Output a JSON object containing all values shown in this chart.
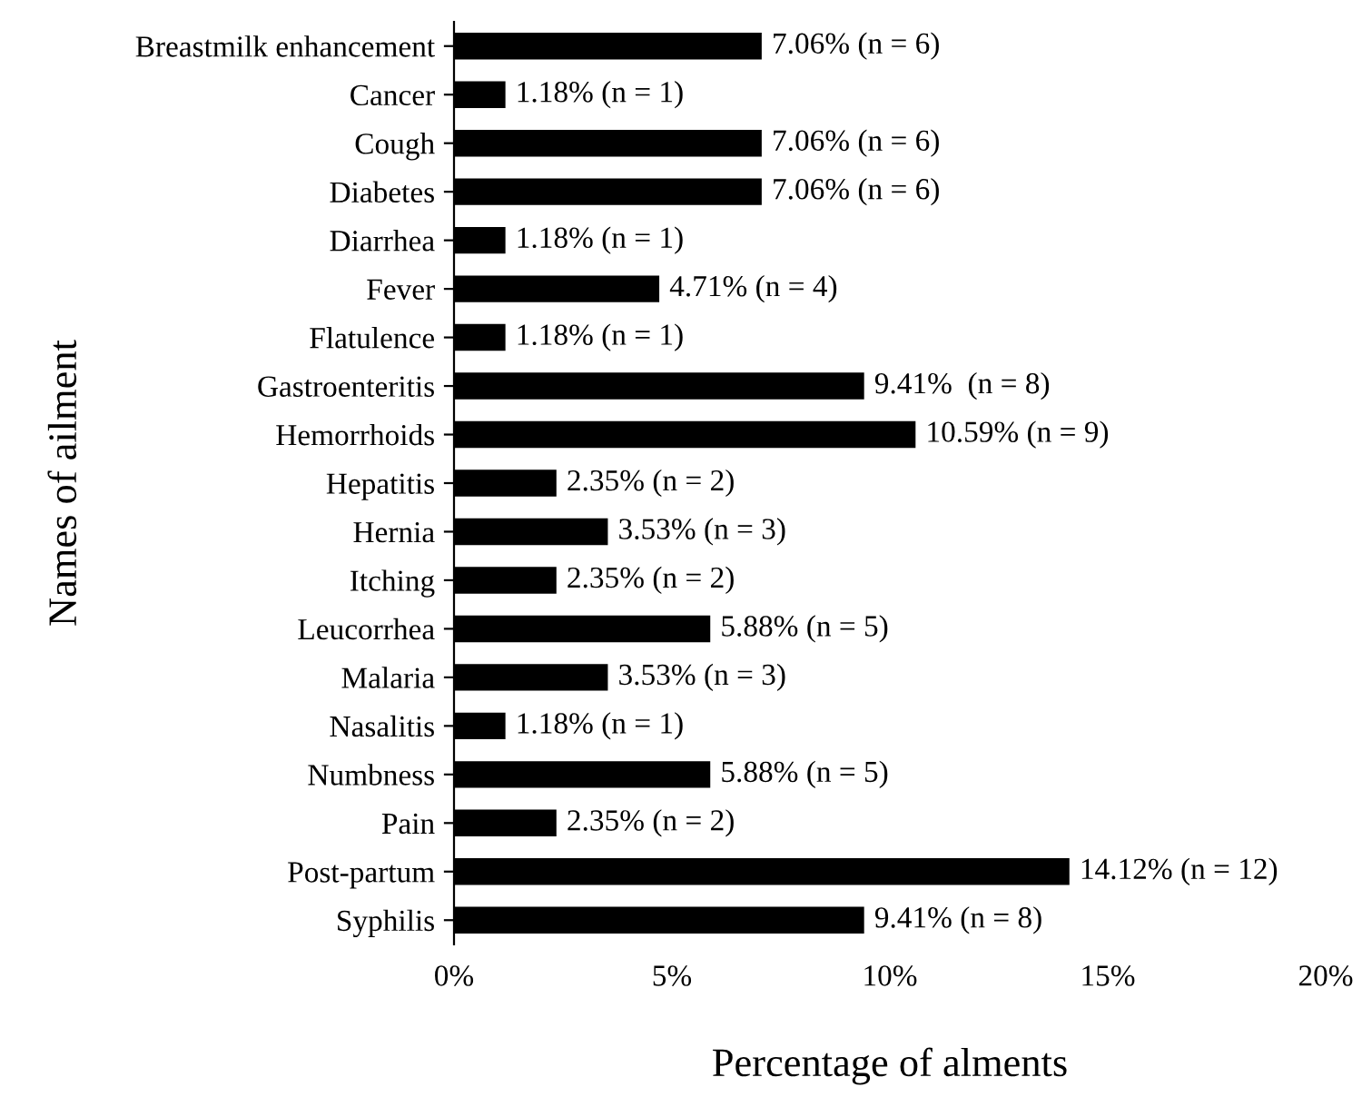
{
  "chart_data": {
    "type": "bar",
    "orientation": "horizontal",
    "xlabel": "Percentage of alments",
    "ylabel": "Names of ailment",
    "categories": [
      "Breastmilk enhancement",
      "Cancer",
      "Cough",
      "Diabetes",
      "Diarrhea",
      "Fever",
      "Flatulence",
      "Gastroenteritis",
      "Hemorrhoids",
      "Hepatitis",
      "Hernia",
      "Itching",
      "Leucorrhea",
      "Malaria",
      "Nasalitis",
      "Numbness",
      "Pain",
      "Post-partum",
      "Syphilis"
    ],
    "values": [
      7.06,
      1.18,
      7.06,
      7.06,
      1.18,
      4.71,
      1.18,
      9.41,
      10.59,
      2.35,
      3.53,
      2.35,
      5.88,
      3.53,
      1.18,
      5.88,
      2.35,
      14.12,
      9.41
    ],
    "value_labels": [
      "7.06% (n = 6)",
      "1.18% (n = 1)",
      "7.06% (n = 6)",
      "7.06% (n = 6)",
      "1.18% (n = 1)",
      "4.71% (n = 4)",
      "1.18% (n = 1)",
      "9.41%  (n = 8)",
      "10.59% (n = 9)",
      "2.35% (n = 2)",
      "3.53% (n = 3)",
      "2.35% (n = 2)",
      "5.88% (n = 5)",
      "3.53% (n = 3)",
      "1.18% (n = 1)",
      "5.88% (n = 5)",
      "2.35% (n = 2)",
      "14.12% (n = 12)",
      "9.41% (n = 8)"
    ],
    "color": "#000000",
    "xlim": [
      0,
      20
    ],
    "xticks": [
      {
        "value": 0,
        "label": "0%"
      },
      {
        "value": 5,
        "label": "5%"
      },
      {
        "value": 10,
        "label": "10%"
      },
      {
        "value": 15,
        "label": "15%"
      },
      {
        "value": 20,
        "label": "20%"
      }
    ],
    "grid": false,
    "legend": false
  }
}
